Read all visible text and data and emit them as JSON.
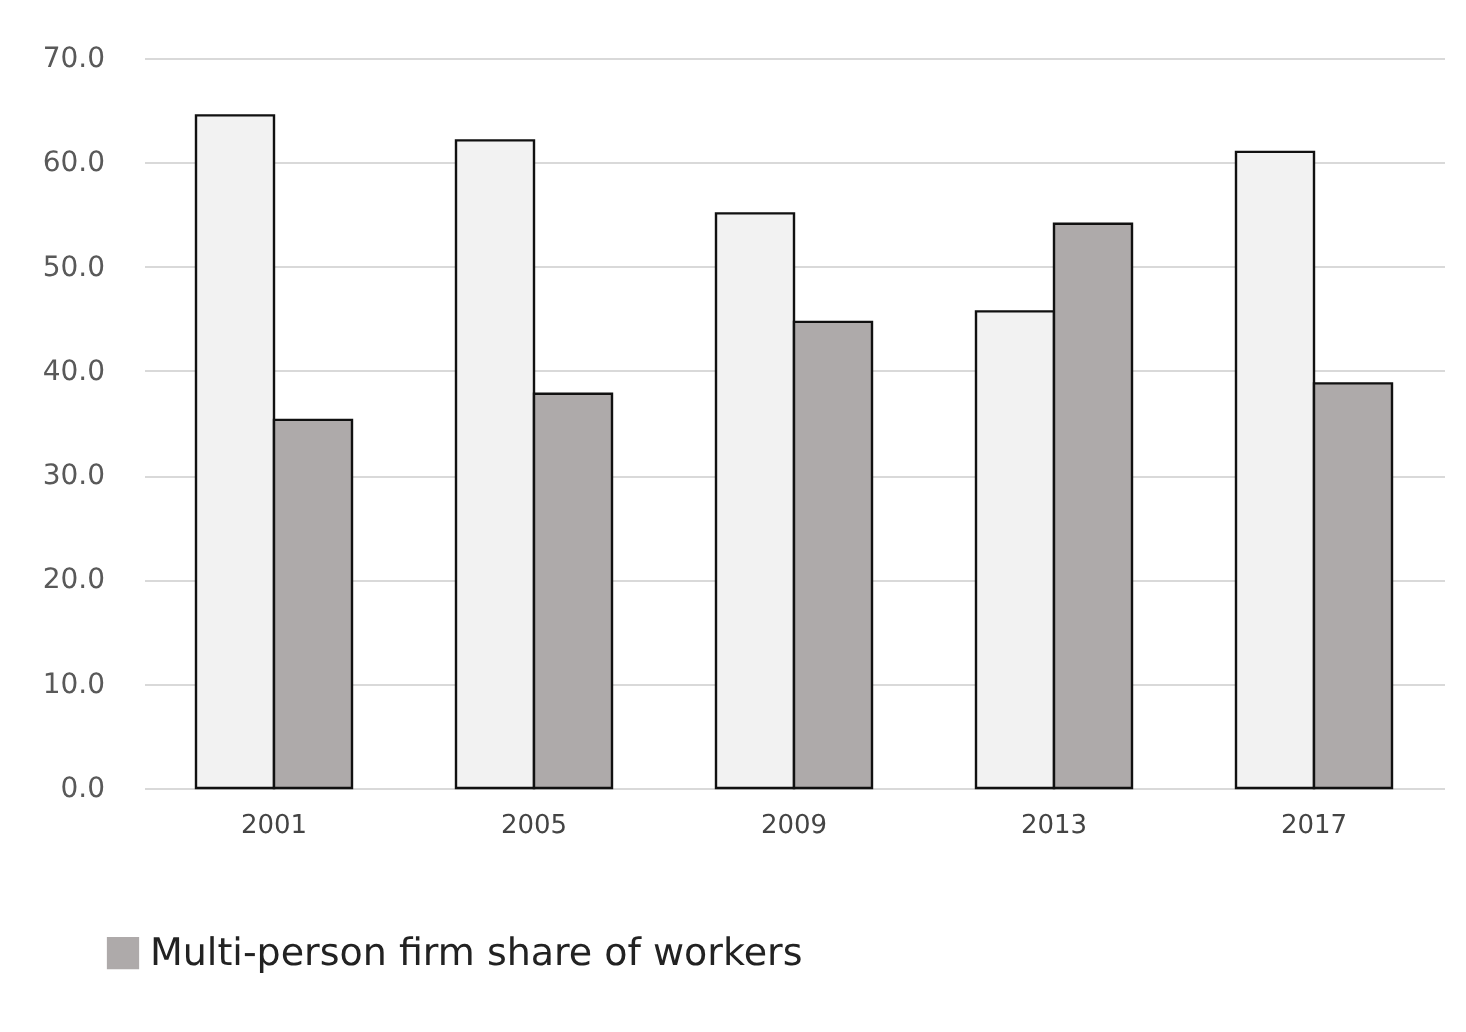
{
  "chart_data": {
    "type": "bar",
    "categories": [
      "2001",
      "2005",
      "2009",
      "2013",
      "2017"
    ],
    "series": [
      {
        "color": "#f2f2f2",
        "values": [
          64.5,
          62.1,
          55.1,
          45.7,
          61.0
        ]
      },
      {
        "name": "Multi-person firm share of workers",
        "color": "#aeaaaa",
        "values": [
          35.3,
          37.8,
          44.7,
          54.1,
          38.8
        ]
      }
    ],
    "ylim": [
      0,
      70
    ],
    "yticks": [
      {
        "value": 0,
        "label": "0.0"
      },
      {
        "value": 10,
        "label": "10.0"
      },
      {
        "value": 20,
        "label": "20.0"
      },
      {
        "value": 30,
        "label": "30.0"
      },
      {
        "value": 40,
        "label": "40.0"
      },
      {
        "value": 50,
        "label": "50.0"
      },
      {
        "value": 60,
        "label": "60.0"
      },
      {
        "value": 70,
        "label": "70.0"
      }
    ],
    "grid": "y",
    "legend": "bottom"
  }
}
